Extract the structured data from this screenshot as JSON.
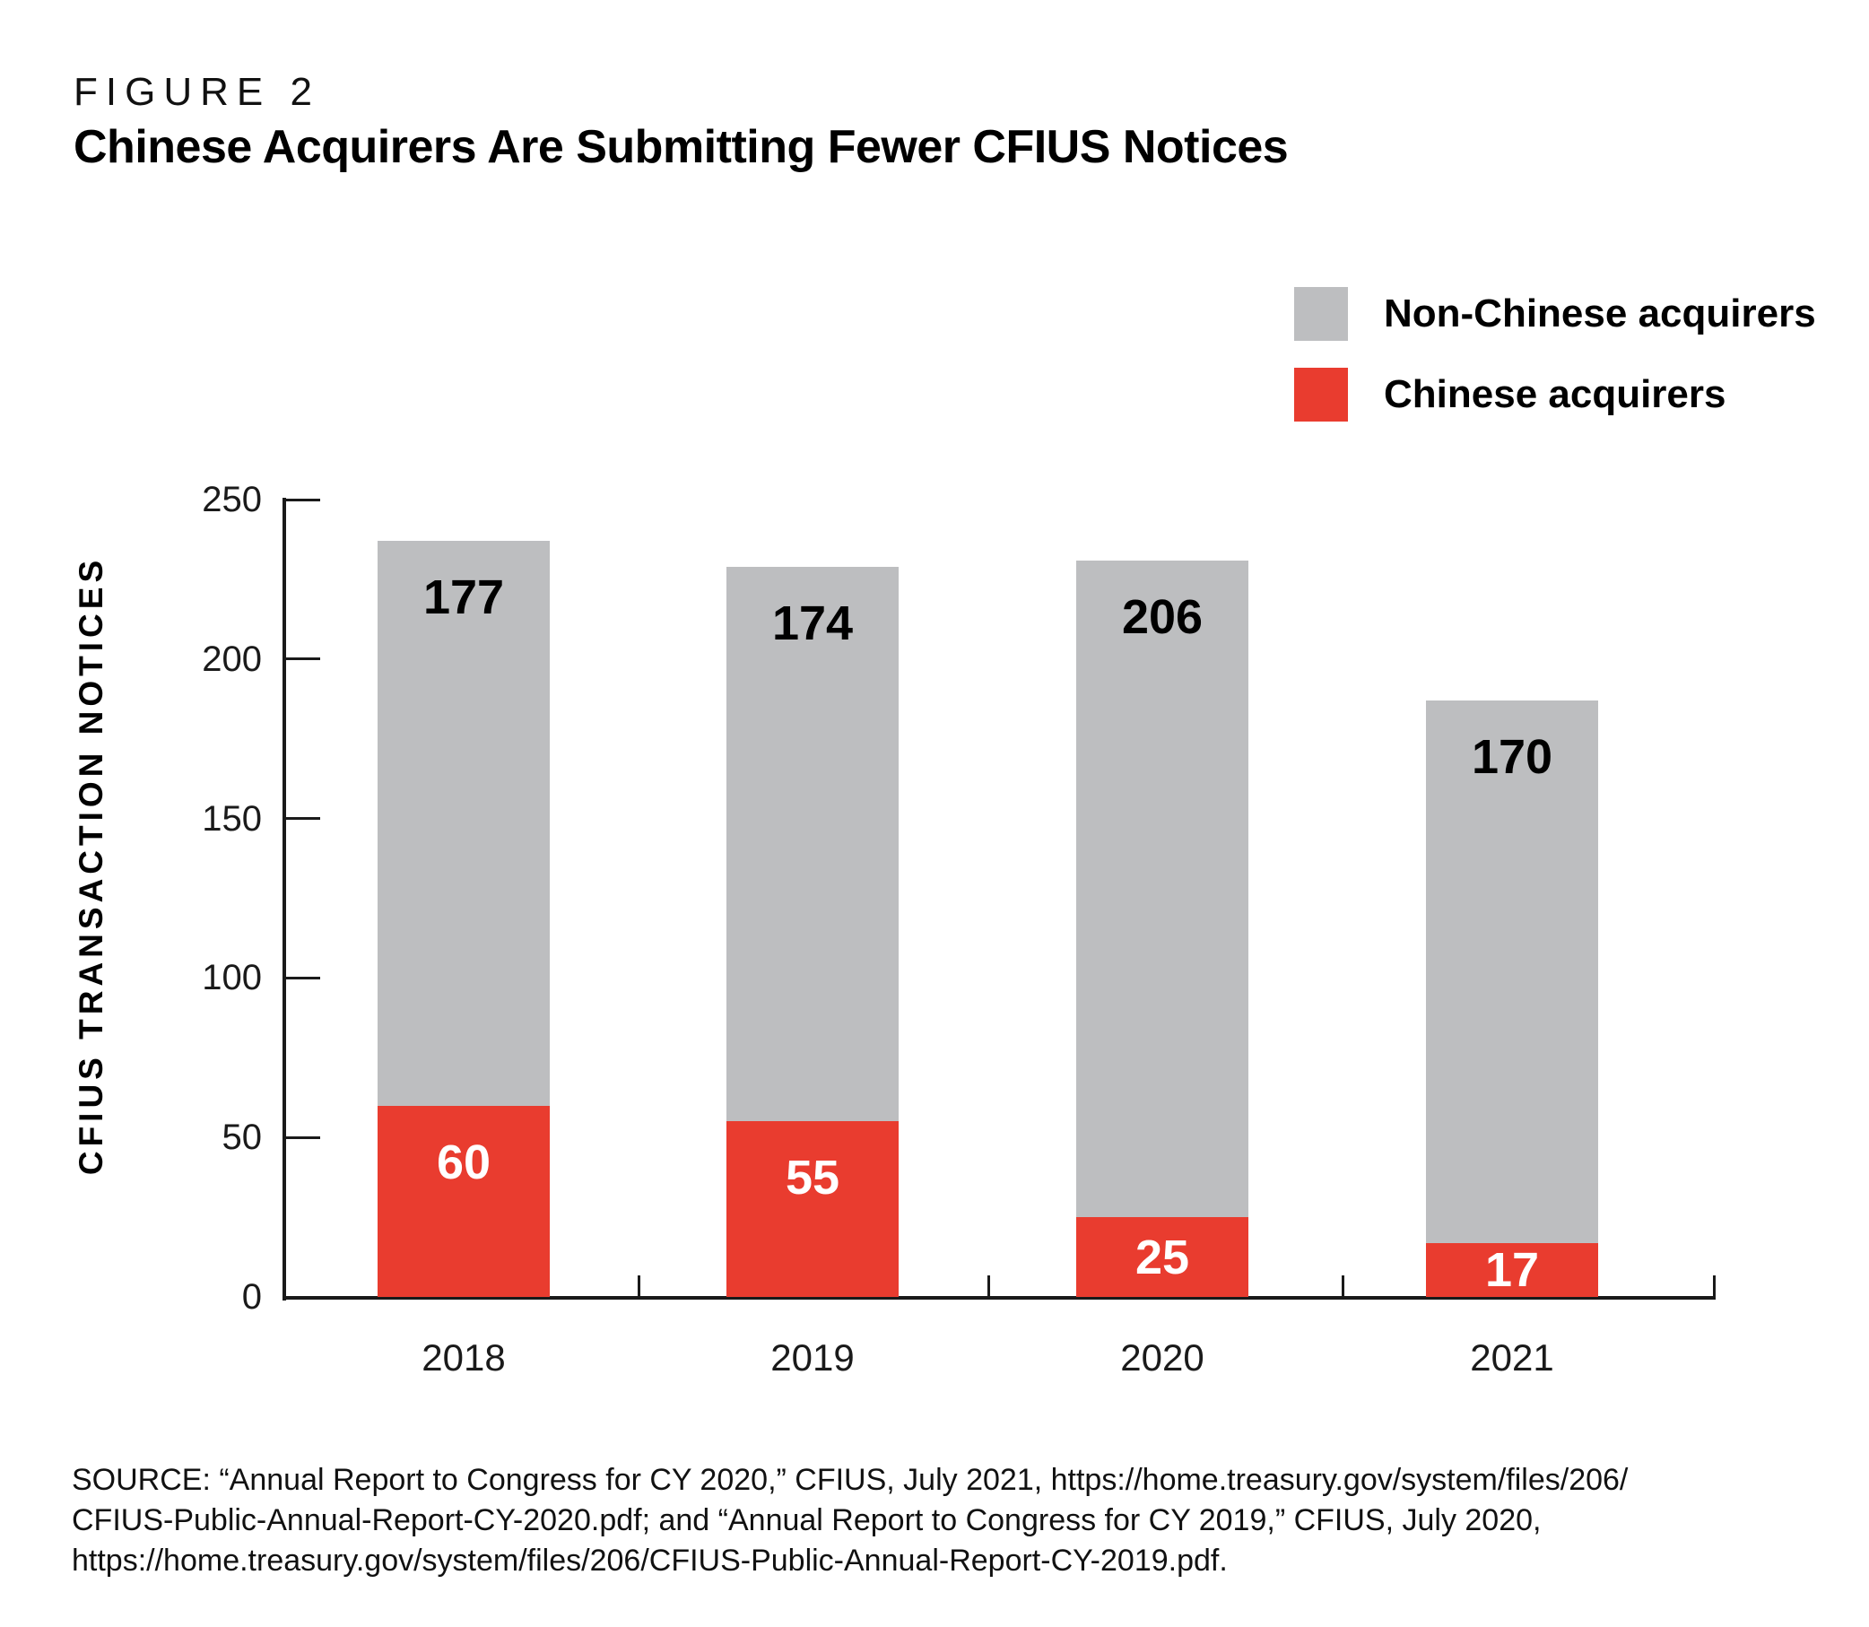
{
  "figure_label": "FIGURE 2",
  "title": "Chinese Acquirers Are Submitting Fewer CFIUS Notices",
  "legend": {
    "items": [
      {
        "label": "Non-Chinese acquirers",
        "color": "#bdbec0"
      },
      {
        "label": "Chinese acquirers",
        "color": "#e93c2f"
      }
    ]
  },
  "chart_data": {
    "type": "bar",
    "stacked": true,
    "title": "Chinese Acquirers Are Submitting Fewer CFIUS Notices",
    "categories": [
      "2018",
      "2019",
      "2020",
      "2021"
    ],
    "series": [
      {
        "name": "Chinese acquirers",
        "color": "#e93c2f",
        "label_color": "#ffffff",
        "values": [
          60,
          55,
          25,
          17
        ]
      },
      {
        "name": "Non-Chinese acquirers",
        "color": "#bdbec0",
        "label_color": "#000000",
        "values": [
          177,
          174,
          206,
          170
        ]
      }
    ],
    "totals": [
      237,
      229,
      231,
      187
    ],
    "xlabel": "",
    "ylabel": "CFIUS TRANSACTION NOTICES",
    "ylim": [
      0,
      250
    ],
    "yticks": [
      0,
      50,
      100,
      150,
      200,
      250
    ],
    "grid": false,
    "legend_position": "top-right",
    "axis_color": "#1a1a1a"
  },
  "source": {
    "lines": [
      "SOURCE: “Annual Report to Congress for CY 2020,” CFIUS, July 2021, https://home.treasury.gov/system/files/206/",
      "CFIUS-Public-Annual-Report-CY-2020.pdf; and “Annual Report to Congress for CY 2019,” CFIUS, July 2020,",
      "https://home.treasury.gov/system/files/206/CFIUS-Public-Annual-Report-CY-2019.pdf."
    ]
  }
}
